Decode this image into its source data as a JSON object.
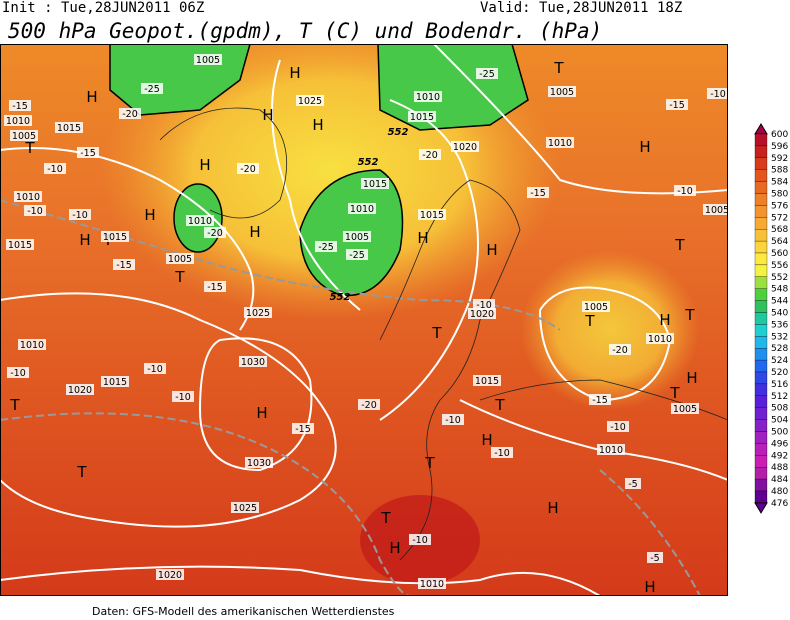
{
  "header": {
    "init": "Init : Tue,28JUN2011 06Z",
    "valid": "Valid: Tue,28JUN2011 18Z",
    "title": "500 hPa Geopot.(gpdm), T (C) und Bodendr. (hPa)"
  },
  "footer": "Daten: GFS-Modell des amerikanischen Wetterdienstes",
  "colorbar": {
    "levels": [
      "600",
      "596",
      "592",
      "588",
      "584",
      "580",
      "576",
      "572",
      "568",
      "564",
      "560",
      "556",
      "552",
      "548",
      "544",
      "540",
      "536",
      "532",
      "528",
      "524",
      "520",
      "516",
      "512",
      "508",
      "504",
      "500",
      "496",
      "492",
      "488",
      "484",
      "480",
      "476"
    ],
    "colors": [
      "#a8004a",
      "#b8102a",
      "#c8201c",
      "#d83a1c",
      "#e2561e",
      "#e86a22",
      "#ee8028",
      "#f29430",
      "#f6aa34",
      "#f8c038",
      "#fad63c",
      "#fcea40",
      "#f4f440",
      "#9ce040",
      "#4cd040",
      "#30c060",
      "#20c8a0",
      "#20d0d0",
      "#20b8e8",
      "#2090f0",
      "#2068f0",
      "#3048e8",
      "#4030e0",
      "#5820d8",
      "#7020d0",
      "#8820c8",
      "#a020c0",
      "#b820b8",
      "#c820b0",
      "#b020a8",
      "#8010a0",
      "#600090"
    ]
  },
  "map": {
    "labels": [
      "H",
      "H",
      "H",
      "H",
      "H",
      "H",
      "H",
      "H",
      "H",
      "H",
      "H",
      "H",
      "H",
      "H",
      "H",
      "H",
      "H",
      "H",
      "T",
      "T",
      "T",
      "T",
      "T",
      "T",
      "T",
      "T",
      "T",
      "T",
      "T",
      "T",
      "T",
      "T",
      "1005",
      "1010",
      "1015",
      "1005",
      "1025",
      "1010",
      "1015",
      "1020",
      "1010",
      "1005",
      "1015",
      "1010",
      "1005",
      "1010",
      "1015",
      "1010",
      "1015",
      "1005",
      "1025",
      "1030",
      "1010",
      "1015",
      "1020",
      "1030",
      "1025",
      "1020",
      "1010",
      "1015",
      "1020",
      "1005",
      "1010",
      "1005",
      "1010",
      "1015",
      "1005",
      "-25",
      "-20",
      "-15",
      "-15",
      "-10",
      "-10",
      "-10",
      "-15",
      "-20",
      "-20",
      "-25",
      "-25",
      "-25",
      "-20",
      "-15",
      "-15",
      "-10",
      "-15",
      "-10",
      "-10",
      "-10",
      "-15",
      "-20",
      "-10",
      "-10",
      "-20",
      "-15",
      "-10",
      "-5",
      "-5",
      "-10",
      "-10",
      "-10",
      "552",
      "552",
      "552"
    ]
  }
}
